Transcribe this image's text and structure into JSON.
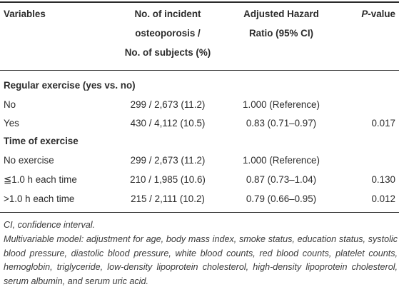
{
  "table": {
    "headers": {
      "variables": "Variables",
      "incident_line1": "No. of incident",
      "incident_line2": "osteoporosis /",
      "incident_line3": "No. of subjects (%)",
      "hazard_line1": "Adjusted Hazard",
      "hazard_line2": "Ratio (95% CI)",
      "pvalue_italic": "P",
      "pvalue_rest": "-value"
    },
    "sections": [
      {
        "title": "Regular exercise (yes vs. no)",
        "rows": [
          {
            "variable": "No",
            "incidence": "299 / 2,673 (11.2)",
            "hr": "1.000 (Reference)",
            "p": ""
          },
          {
            "variable": "Yes",
            "incidence": "430 / 4,112 (10.5)",
            "hr": "0.83 (0.71–0.97)",
            "p": "0.017"
          }
        ]
      },
      {
        "title": "Time of exercise",
        "rows": [
          {
            "variable": "No exercise",
            "incidence": "299 / 2,673 (11.2)",
            "hr": "1.000 (Reference)",
            "p": ""
          },
          {
            "variable": "≦1.0 h each time",
            "incidence": "210 / 1,985 (10.6)",
            "hr": "0.87 (0.73–1.04)",
            "p": "0.130"
          },
          {
            "variable": ">1.0 h each time",
            "incidence": "215 / 2,111 (10.2)",
            "hr": "0.79 (0.66–0.95)",
            "p": "0.012"
          }
        ]
      }
    ]
  },
  "footnotes": {
    "ci": "CI, confidence interval.",
    "model": "Multivariable model: adjustment for age, body mass index, smoke status, education status, systolic blood pressure, diastolic blood pressure, white blood counts, red blood counts, platelet counts, hemoglobin, triglyceride, low-density lipoprotein cholesterol, high-density lipoprotein cholesterol, serum albumin, and serum uric acid."
  }
}
